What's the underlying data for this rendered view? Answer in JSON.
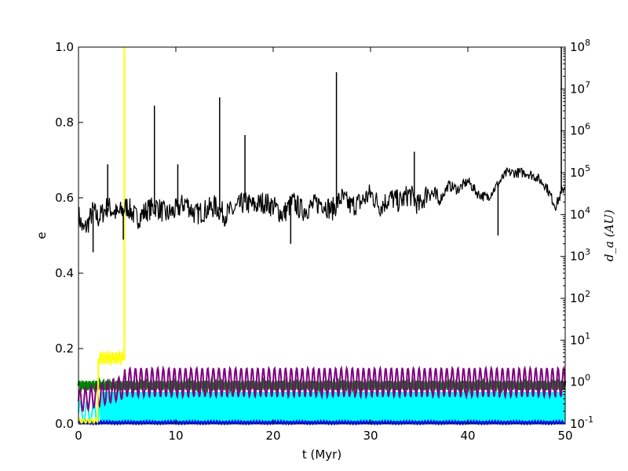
{
  "chart_data": {
    "type": "line",
    "xlabel": "t (Myr)",
    "ylabel_left": "e",
    "ylabel_right": "d_a (AU)",
    "xlim": [
      0,
      50
    ],
    "ylim_left": [
      0,
      1.0
    ],
    "ylim_right_log10": [
      -1,
      8
    ],
    "x_ticks": [
      "0",
      "10",
      "20",
      "30",
      "40",
      "50"
    ],
    "y_left_ticks": [
      "0.0",
      "0.2",
      "0.4",
      "0.6",
      "0.8",
      "1.0"
    ],
    "y_right_ticks": [
      {
        "base": "10",
        "exp": "-1"
      },
      {
        "base": "10",
        "exp": "0"
      },
      {
        "base": "10",
        "exp": "1"
      },
      {
        "base": "10",
        "exp": "2"
      },
      {
        "base": "10",
        "exp": "3"
      },
      {
        "base": "10",
        "exp": "4"
      },
      {
        "base": "10",
        "exp": "5"
      },
      {
        "base": "10",
        "exp": "6"
      },
      {
        "base": "10",
        "exp": "7"
      },
      {
        "base": "10",
        "exp": "8"
      }
    ],
    "grid": false,
    "series": [
      {
        "color": "#00ffff",
        "axis": "left",
        "description_values": {
          "x_range": [
            0,
            50
          ],
          "e_min": 0.0,
          "e_max": 0.085
        }
      },
      {
        "color": "#008000",
        "axis": "left",
        "description_values": {
          "x_range": [
            0,
            50
          ],
          "e_min": 0.09,
          "e_max": 0.115
        }
      },
      {
        "color": "#800080",
        "axis": "left",
        "description_values": {
          "x_range": [
            0,
            50
          ],
          "e_min": 0.07,
          "e_max": 0.15
        }
      },
      {
        "color": "#0000ff",
        "axis": "left",
        "description_values": {
          "x_range": [
            0,
            50
          ],
          "e_min": 0.0,
          "e_max": 0.01
        }
      },
      {
        "color": "#ffff00",
        "axis": "left",
        "points": [
          [
            0,
            0.005
          ],
          [
            2.0,
            0.01
          ],
          [
            2.1,
            0.18
          ],
          [
            4.6,
            0.17
          ],
          [
            4.7,
            1.0
          ]
        ]
      },
      {
        "color": "#000000",
        "axis": "right_log",
        "points": [
          [
            0,
            4.0
          ],
          [
            0.5,
            3.6
          ],
          [
            1,
            3.8
          ],
          [
            1.5,
            4.1
          ],
          [
            2,
            3.9
          ],
          [
            3,
            4.2
          ],
          [
            4,
            4.0
          ],
          [
            5,
            4.2
          ],
          [
            6,
            3.9
          ],
          [
            7,
            4.1
          ],
          [
            8,
            4.2
          ],
          [
            9,
            4.0
          ],
          [
            10,
            4.1
          ],
          [
            11,
            4.3
          ],
          [
            12,
            4.0
          ],
          [
            13,
            4.1
          ],
          [
            14,
            4.2
          ],
          [
            15,
            4.0
          ],
          [
            16,
            4.1
          ],
          [
            17,
            4.3
          ],
          [
            18,
            4.2
          ],
          [
            19,
            4.3
          ],
          [
            20,
            4.2
          ],
          [
            21,
            4.0
          ],
          [
            22,
            4.3
          ],
          [
            23,
            4.1
          ],
          [
            24,
            4.2
          ],
          [
            25,
            4.3
          ],
          [
            26,
            4.1
          ],
          [
            27,
            4.4
          ],
          [
            28,
            4.2
          ],
          [
            29,
            4.3
          ],
          [
            30,
            4.5
          ],
          [
            31,
            4.2
          ],
          [
            32,
            4.4
          ],
          [
            33,
            4.3
          ],
          [
            34,
            4.5
          ],
          [
            35,
            4.2
          ],
          [
            36,
            4.6
          ],
          [
            37,
            4.3
          ],
          [
            38,
            4.7
          ],
          [
            39,
            4.6
          ],
          [
            40,
            4.8
          ],
          [
            41,
            4.5
          ],
          [
            42,
            4.4
          ],
          [
            43,
            4.7
          ],
          [
            44,
            5.0
          ],
          [
            45,
            5.0
          ],
          [
            46,
            5.0
          ],
          [
            47,
            4.9
          ],
          [
            48,
            4.7
          ],
          [
            49,
            4.2
          ],
          [
            50,
            4.7
          ]
        ],
        "spikes": [
          [
            1.5,
            3.1
          ],
          [
            3.0,
            5.2
          ],
          [
            4.6,
            3.4
          ],
          [
            7.8,
            6.6
          ],
          [
            10.2,
            5.2
          ],
          [
            14.5,
            6.8
          ],
          [
            17.1,
            5.9
          ],
          [
            21.8,
            3.3
          ],
          [
            26.5,
            7.4
          ],
          [
            34.5,
            5.5
          ],
          [
            43.1,
            3.5
          ],
          [
            49.6,
            8.0
          ]
        ]
      }
    ]
  }
}
